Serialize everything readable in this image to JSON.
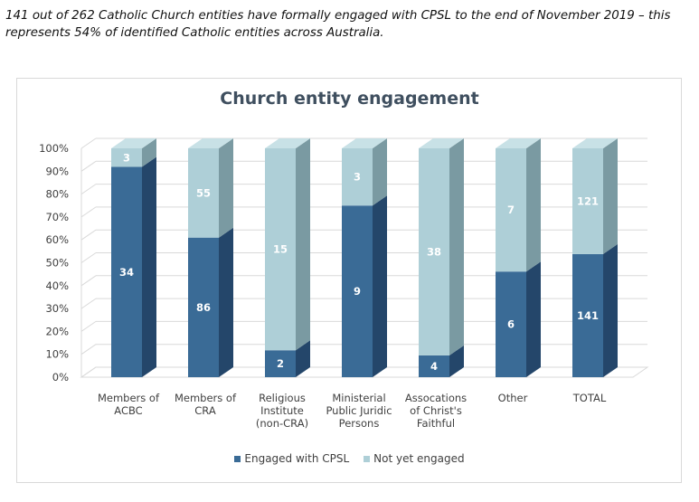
{
  "caption": {
    "line1": "141 out of 262 Catholic Church entities have formally engaged with CPSL to the end of November 2019 – this",
    "line2": "represents 54% of identified Catholic entities across Australia."
  },
  "colors": {
    "engaged": "#3a6b96",
    "engaged_side": "#24466a",
    "engaged_top": "#5b8bb5",
    "not_engaged": "#aecfd7",
    "not_engaged_side": "#7a9aa2",
    "not_engaged_top": "#c8e1e6"
  },
  "chart_data": {
    "type": "bar",
    "stacked": "100%",
    "three_d": true,
    "title": "Church entity engagement",
    "xlabel": "",
    "ylabel": "",
    "ylim": [
      0,
      100
    ],
    "y_ticks": [
      "0%",
      "10%",
      "20%",
      "30%",
      "40%",
      "50%",
      "60%",
      "70%",
      "80%",
      "90%",
      "100%"
    ],
    "categories": [
      [
        "Members of",
        "ACBC"
      ],
      [
        "Members of",
        "CRA"
      ],
      [
        "Religious",
        "Institute",
        "(non-CRA)"
      ],
      [
        "Ministerial",
        "Public Juridic",
        "Persons"
      ],
      [
        "Assocations",
        "of Christ's",
        "Faithful"
      ],
      [
        "Other"
      ],
      [
        "TOTAL"
      ]
    ],
    "series": [
      {
        "name": "Engaged with CPSL",
        "values": [
          34,
          86,
          2,
          9,
          4,
          6,
          141
        ]
      },
      {
        "name": "Not yet engaged",
        "values": [
          3,
          55,
          15,
          3,
          38,
          7,
          121
        ]
      }
    ],
    "legend_position": "bottom",
    "grid": true
  }
}
